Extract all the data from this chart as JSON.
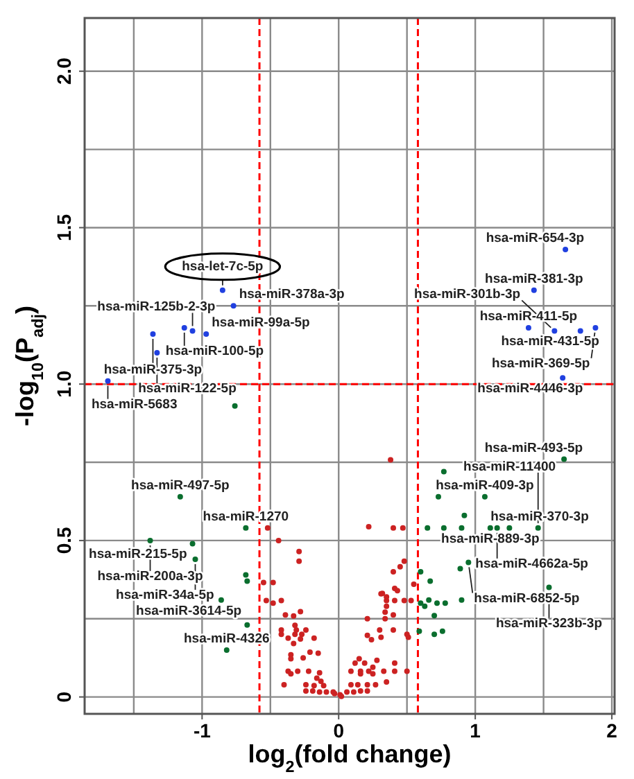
{
  "chart_data": {
    "type": "scatter",
    "xlabel": "log$_{2}$(fold change)",
    "ylabel": "-log$_{10}$(P$_{adj}$)",
    "xlim": [
      -1.86,
      2.02
    ],
    "ylim": [
      -0.054,
      2.17
    ],
    "xticks": [
      {
        "value": -1.5,
        "label": null
      },
      -1,
      {
        "value": -0.5,
        "label": null
      },
      0,
      {
        "value": 0.5,
        "label": null
      },
      1,
      {
        "value": 1.5,
        "label": null
      },
      2
    ],
    "yticks": [
      0,
      {
        "value": 0.25,
        "label": null
      },
      0.5,
      {
        "value": 0.75,
        "label": null
      },
      {
        "value": 1,
        "label": "1.0"
      },
      {
        "value": 1.25,
        "label": null
      },
      1.5,
      {
        "value": 1.75,
        "label": null
      },
      {
        "value": 2,
        "label": "2.0"
      }
    ],
    "grid": true,
    "marker": "circle",
    "ref_lines": [
      {
        "axis": "x",
        "value": -0.58,
        "color": "#ff0000",
        "line_style": "dashed"
      },
      {
        "axis": "x",
        "value": 0.58,
        "color": "#ff0000",
        "line_style": "dashed"
      },
      {
        "axis": "y",
        "value": 1,
        "color": "#ff0000",
        "line_style": "dashed"
      }
    ],
    "series": [
      {
        "color": "#2040e0",
        "x": [
          -0.85,
          -1.07,
          -1.13,
          -1.36,
          -0.97,
          -0.77,
          -1.33,
          -1.69,
          1.66,
          1.43,
          1.39,
          1.77,
          1.88,
          1.58,
          1.64
        ],
        "values": [
          1.3,
          1.17,
          1.18,
          1.16,
          1.16,
          1.25,
          1.1,
          1.01,
          1.43,
          1.3,
          1.18,
          1.17,
          1.18,
          1.17,
          1.02
        ]
      },
      {
        "color": "#0a6e2e",
        "x": [
          -1.16,
          -0.68,
          -1.38,
          -1.07,
          -1.05,
          -0.86,
          -0.82,
          -0.76,
          -0.68,
          -0.67,
          -0.67,
          1.65,
          1.07,
          1.11,
          1.25,
          1.16,
          1.46,
          0.95,
          1.54,
          0.77,
          0.73,
          0.92,
          0.65,
          0.77,
          0.9,
          0.89,
          0.6,
          0.67,
          0.6,
          0.66,
          0.72,
          0.78,
          0.9,
          0.63,
          0.7,
          0.59,
          0.76,
          0.7
        ],
        "values": [
          0.64,
          0.54,
          0.5,
          0.49,
          0.44,
          0.31,
          0.15,
          0.93,
          0.39,
          0.37,
          0.23,
          0.76,
          0.64,
          0.54,
          0.54,
          0.54,
          0.54,
          0.43,
          0.35,
          0.72,
          0.64,
          0.58,
          0.54,
          0.54,
          0.54,
          0.41,
          0.4,
          0.37,
          0.3,
          0.31,
          0.3,
          0.3,
          0.31,
          0.29,
          0.26,
          0.21,
          0.21,
          0.2
        ]
      },
      {
        "color": "#cc2222",
        "x": [
          0.01,
          0.02,
          -0.03,
          -0.04,
          -0.09,
          -0.14,
          -0.19,
          -0.24,
          0.06,
          0.11,
          0.16,
          0.21,
          -0.11,
          -0.18,
          -0.24,
          -0.4,
          0.09,
          0.14,
          0.21,
          0.27,
          0.35,
          -0.13,
          -0.16,
          -0.37,
          -0.3,
          -0.22,
          -0.14,
          -0.35,
          0.09,
          0.16,
          0.22,
          0.33,
          0.41,
          0.5,
          0.16,
          0.25,
          0.12,
          0.19,
          0.25,
          0.41,
          0.15,
          0.28,
          -0.35,
          -0.26,
          -0.35,
          -0.21,
          -0.15,
          -0.33,
          -0.28,
          -0.18,
          -0.37,
          -0.42,
          -0.32,
          -0.27,
          -0.42,
          -0.31,
          -0.24,
          -0.32,
          -0.33,
          -0.39,
          -0.28,
          -0.48,
          -0.53,
          -0.42,
          0.21,
          0.24,
          0.31,
          0.3,
          0.4,
          0.5,
          0.51,
          0.21,
          0.34,
          0.4,
          0.34,
          0.35,
          0.35,
          0.41,
          0.48,
          0.53,
          0.32,
          0.41,
          0.35,
          -0.52,
          -0.44,
          -0.29,
          -0.55,
          -0.48,
          0.38,
          0.22,
          0.4,
          0.47,
          -0.29,
          0.48,
          0.45,
          0.4,
          0.43,
          0.31,
          0.55
        ],
        "values": [
          0.007,
          0.002,
          0.011,
          0.016,
          0.016,
          0.016,
          0.019,
          0.019,
          0.016,
          0.016,
          0.019,
          0.019,
          0.036,
          0.036,
          0.039,
          0.039,
          0.039,
          0.039,
          0.039,
          0.039,
          0.048,
          0.05,
          0.06,
          0.082,
          0.082,
          0.082,
          0.077,
          0.074,
          0.082,
          0.082,
          0.082,
          0.082,
          0.082,
          0.082,
          0.074,
          0.074,
          0.108,
          0.108,
          0.095,
          0.108,
          0.122,
          0.117,
          0.135,
          0.125,
          0.122,
          0.143,
          0.14,
          0.171,
          0.185,
          0.188,
          0.188,
          0.2,
          0.2,
          0.2,
          0.214,
          0.214,
          0.214,
          0.229,
          0.259,
          0.262,
          0.273,
          0.3,
          0.308,
          0.308,
          0.197,
          0.183,
          0.191,
          0.214,
          0.214,
          0.2,
          0.191,
          0.25,
          0.25,
          0.262,
          0.271,
          0.29,
          0.308,
          0.308,
          0.308,
          0.308,
          0.331,
          0.347,
          0.32,
          0.54,
          0.5,
          0.465,
          0.366,
          0.366,
          0.758,
          0.544,
          0.54,
          0.54,
          0.434,
          0.434,
          0.416,
          0.4,
          0.34,
          0.33,
          0.36
        ]
      }
    ],
    "annotations": [
      {
        "text": "hsa-let-7c-5p",
        "x": -0.85,
        "y": 1.3
      },
      {
        "text": "hsa-miR-125b-2-3p",
        "x": -1.07,
        "y": 1.17
      },
      {
        "text": "hsa-miR-100-5p",
        "x": -1.13,
        "y": 1.18
      },
      {
        "text": "hsa-miR-375-3p",
        "x": -1.36,
        "y": 1.16
      },
      {
        "text": "hsa-miR-99a-5p",
        "x": -0.97,
        "y": 1.16
      },
      {
        "text": "hsa-miR-378a-3p",
        "x": -0.77,
        "y": 1.25
      },
      {
        "text": "hsa-miR-122-5p",
        "x": -1.33,
        "y": 1.1
      },
      {
        "text": "hsa-miR-5683",
        "x": -1.69,
        "y": 1.01
      },
      {
        "text": "hsa-miR-654-3p",
        "x": 1.66,
        "y": 1.43
      },
      {
        "text": "hsa-miR-381-3p",
        "x": 1.43,
        "y": 1.3
      },
      {
        "text": "hsa-miR-411-5p",
        "x": 1.39,
        "y": 1.18
      },
      {
        "text": "hsa-miR-431-5p",
        "x": 1.77,
        "y": 1.17
      },
      {
        "text": "hsa-miR-369-5p",
        "x": 1.88,
        "y": 1.18
      },
      {
        "text": "hsa-miR-301b-3p",
        "x": 1.58,
        "y": 1.17
      },
      {
        "text": "hsa-miR-4446-3p",
        "x": 1.64,
        "y": 1.02
      },
      {
        "text": "hsa-miR-497-5p",
        "x": -1.16,
        "y": 0.64
      },
      {
        "text": "hsa-miR-1270",
        "x": -0.68,
        "y": 0.54
      },
      {
        "text": "hsa-miR-200a-3p",
        "x": -1.38,
        "y": 0.5
      },
      {
        "text": "hsa-miR-215-5p",
        "x": -1.07,
        "y": 0.49
      },
      {
        "text": "hsa-miR-34a-5p",
        "x": -1.05,
        "y": 0.44
      },
      {
        "text": "hsa-miR-3614-5p",
        "x": -0.86,
        "y": 0.31
      },
      {
        "text": "hsa-miR-4326",
        "x": -0.82,
        "y": 0.15
      },
      {
        "text": "hsa-miR-493-5p",
        "x": 1.65,
        "y": 0.76
      },
      {
        "text": "hsa-miR-409-3p",
        "x": 1.07,
        "y": 0.64
      },
      {
        "text": "hsa-miR-889-3p",
        "x": 1.11,
        "y": 0.54
      },
      {
        "text": "hsa-miR-370-3p",
        "x": 1.25,
        "y": 0.54
      },
      {
        "text": "hsa-miR-4662a-5p",
        "x": 1.16,
        "y": 0.54
      },
      {
        "text": "hsa-miR-11400",
        "x": 1.46,
        "y": 0.54
      },
      {
        "text": "hsa-miR-6852-5p",
        "x": 0.95,
        "y": 0.43
      },
      {
        "text": "hsa-miR-323b-3p",
        "x": 1.54,
        "y": 0.35
      }
    ]
  }
}
